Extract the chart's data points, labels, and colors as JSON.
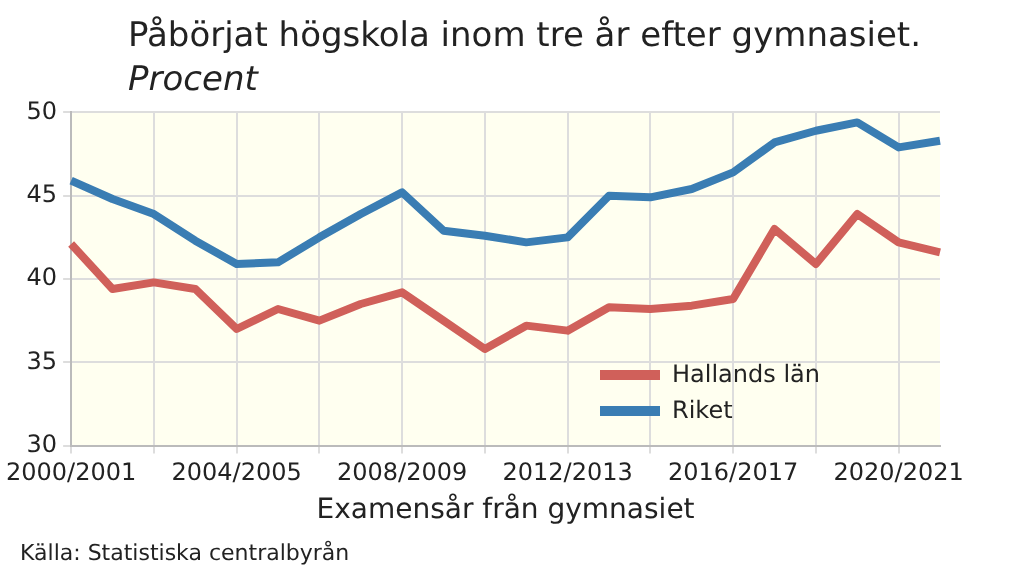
{
  "chart_data": {
    "type": "line",
    "title": "Påbörjat högskola inom tre år efter gymnasiet.",
    "subtitle": "Procent",
    "xlabel": "Examensår från gymnasiet",
    "categories": [
      "2000/2001",
      null,
      null,
      null,
      "2004/2005",
      null,
      null,
      null,
      "2008/2009",
      null,
      null,
      null,
      "2012/2013",
      null,
      null,
      null,
      "2016/2017",
      null,
      null,
      null,
      "2020/2021",
      null
    ],
    "series": [
      {
        "name": "Hallands län",
        "color": "#d0605a",
        "values": [
          42.1,
          39.4,
          39.8,
          39.4,
          37.0,
          38.2,
          37.5,
          38.5,
          39.2,
          37.5,
          35.8,
          37.2,
          36.9,
          38.3,
          38.2,
          38.4,
          38.8,
          43.0,
          40.9,
          43.9,
          42.2,
          41.6
        ]
      },
      {
        "name": "Riket",
        "color": "#3a7db3",
        "values": [
          45.9,
          44.8,
          43.9,
          42.3,
          40.9,
          41.0,
          42.5,
          43.9,
          45.2,
          42.9,
          42.6,
          42.2,
          42.5,
          45.0,
          44.9,
          45.4,
          46.4,
          48.2,
          48.9,
          49.4,
          47.9,
          48.3
        ]
      }
    ],
    "ylim": [
      30,
      50
    ],
    "yticks": [
      30,
      35,
      40,
      45,
      50
    ],
    "grid": true,
    "legend": "bottom right",
    "marker": "none",
    "line_style": "solid",
    "annotations": [
      "Källa: Statistiska centralbyrån"
    ]
  }
}
